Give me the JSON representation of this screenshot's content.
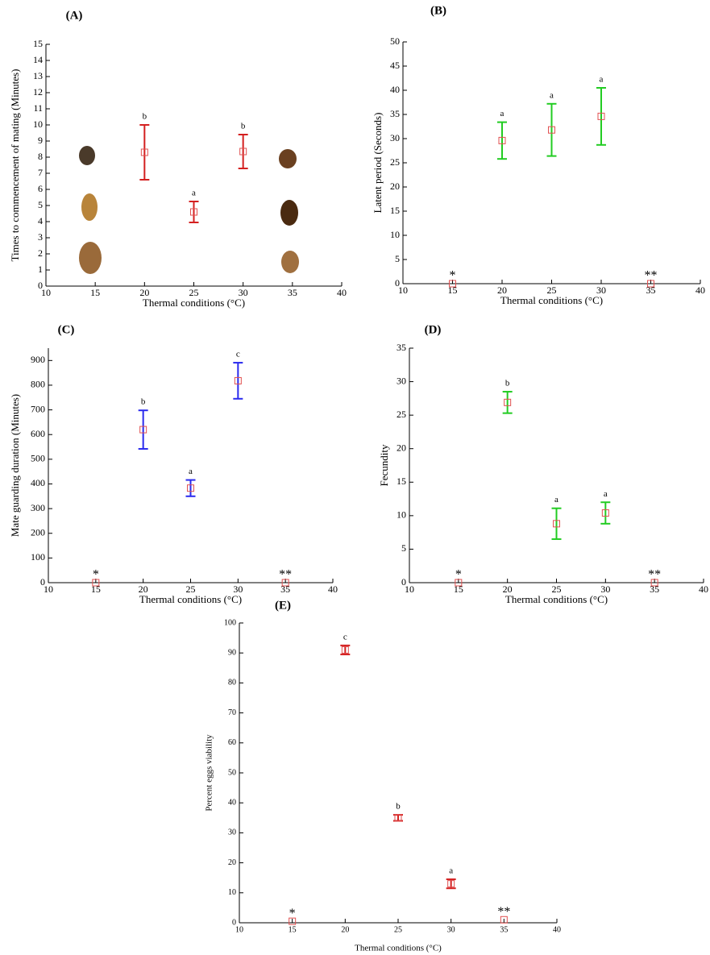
{
  "chart_data": [
    {
      "type": "errorbar",
      "title": "(A)",
      "x_label": "Thermal conditions (°C)",
      "y_label": "Times to commencement of mating (Minutes)",
      "x": [
        15,
        20,
        25,
        30,
        35
      ],
      "values": [
        null,
        8.3,
        4.6,
        8.35,
        null
      ],
      "errors": [
        null,
        1.7,
        0.65,
        1.05,
        null
      ],
      "annotations": [
        null,
        "b",
        "a",
        "b",
        null
      ],
      "error_color": "#d42020",
      "marker_color": "#e05050",
      "xlim": [
        10,
        40
      ],
      "ylim": [
        0,
        15
      ],
      "xticks": [
        10,
        15,
        20,
        25,
        30,
        35,
        40
      ],
      "yticks": [
        0,
        1,
        2,
        3,
        4,
        5,
        6,
        7,
        8,
        9,
        10,
        11,
        12,
        13,
        14,
        15
      ]
    },
    {
      "type": "errorbar",
      "title": "(B)",
      "x_label": "Thermal conditions (°C)",
      "y_label": "Latent period (Seconds)",
      "x": [
        15,
        20,
        25,
        30,
        35
      ],
      "values": [
        0,
        29.6,
        31.8,
        34.6,
        0
      ],
      "errors": [
        null,
        3.8,
        5.4,
        5.9,
        null
      ],
      "annotations": [
        "*",
        "a",
        "a",
        "a",
        "**"
      ],
      "error_color": "#22cc22",
      "marker_color": "#e05050",
      "xlim": [
        10,
        40
      ],
      "ylim": [
        0,
        50
      ],
      "xticks": [
        10,
        15,
        20,
        25,
        30,
        35,
        40
      ],
      "yticks": [
        0,
        5,
        10,
        15,
        20,
        25,
        30,
        35,
        40,
        45,
        50
      ]
    },
    {
      "type": "errorbar",
      "title": "(C)",
      "x_label": "Thermal conditions (°C)",
      "y_label": "Mate guarding duration (Minutes)",
      "x": [
        15,
        20,
        25,
        30,
        35
      ],
      "values": [
        0,
        620,
        383,
        818,
        0
      ],
      "errors": [
        null,
        78,
        33,
        73,
        null
      ],
      "annotations": [
        "*",
        "b",
        "a",
        "c",
        "**"
      ],
      "error_color": "#2a2aee",
      "marker_color": "#e05050",
      "xlim": [
        10,
        40
      ],
      "ylim": [
        0,
        950
      ],
      "xticks": [
        10,
        15,
        20,
        25,
        30,
        35,
        40
      ],
      "yticks": [
        0,
        100,
        200,
        300,
        400,
        500,
        600,
        700,
        800,
        900
      ]
    },
    {
      "type": "errorbar",
      "title": "(D)",
      "x_label": "Thermal conditions (°C)",
      "y_label": "Fecundity",
      "x": [
        15,
        20,
        25,
        30,
        35
      ],
      "values": [
        0,
        26.9,
        8.8,
        10.4,
        0
      ],
      "errors": [
        null,
        1.6,
        2.3,
        1.6,
        null
      ],
      "annotations": [
        "*",
        "b",
        "a",
        "a",
        "**"
      ],
      "error_color": "#22cc22",
      "marker_color": "#e05050",
      "xlim": [
        10,
        40
      ],
      "ylim": [
        0,
        35
      ],
      "xticks": [
        10,
        15,
        20,
        25,
        30,
        35,
        40
      ],
      "yticks": [
        0,
        5,
        10,
        15,
        20,
        25,
        30,
        35
      ]
    },
    {
      "type": "errorbar",
      "title": "(E)",
      "x_label": "Thermal conditions (°C)",
      "y_label": "Percent eggs viability",
      "x": [
        15,
        20,
        25,
        30,
        35
      ],
      "values": [
        0.5,
        91,
        35,
        13,
        1
      ],
      "errors": [
        null,
        1.5,
        1,
        1.5,
        null
      ],
      "annotations": [
        "*",
        "c",
        "b",
        "a",
        "**"
      ],
      "error_color": "#d42020",
      "marker_color": "#e05050",
      "xlim": [
        10,
        40
      ],
      "ylim": [
        0,
        100
      ],
      "xticks": [
        10,
        15,
        20,
        25,
        30,
        35,
        40
      ],
      "yticks": [
        0,
        10,
        20,
        30,
        40,
        50,
        60,
        70,
        80,
        90,
        100
      ]
    }
  ]
}
